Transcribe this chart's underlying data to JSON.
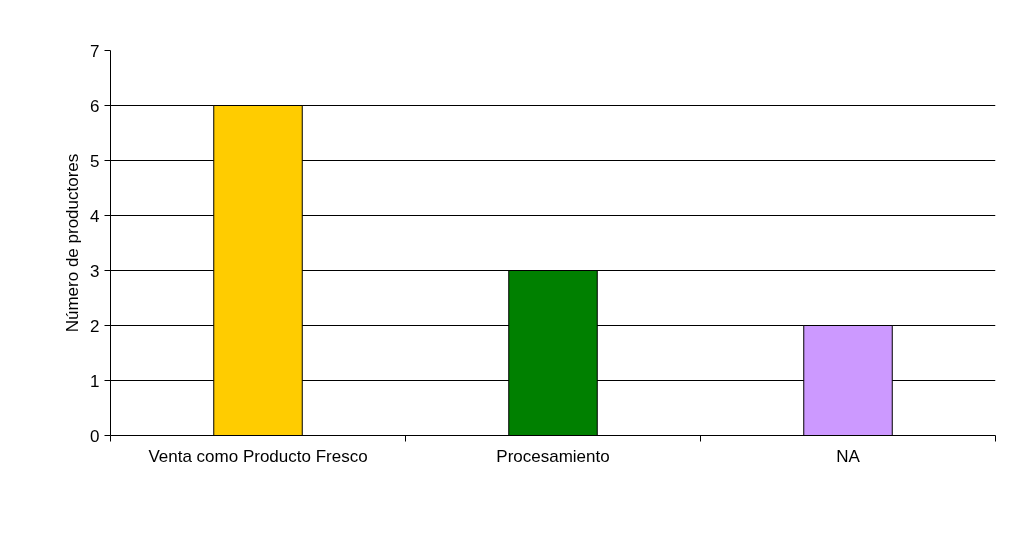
{
  "chart_data": {
    "type": "bar",
    "ylabel": "Número de productores",
    "categories": [
      "Venta como Producto Fresco",
      "Procesamiento",
      "NA"
    ],
    "values": [
      6,
      3,
      2
    ],
    "colors": [
      "#ffcc00",
      "#008000",
      "#cc99ff"
    ],
    "ylim": [
      0,
      7
    ],
    "yticks": [
      0,
      1,
      2,
      3,
      4,
      5,
      6,
      7
    ],
    "grid": "y"
  }
}
